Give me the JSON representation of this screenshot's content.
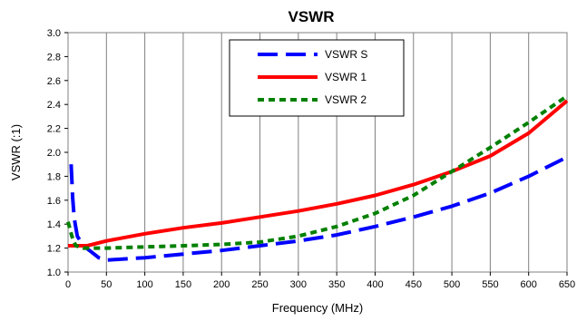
{
  "chart_data": {
    "type": "line",
    "title": "VSWR",
    "xlabel": "Frequency (MHz)",
    "ylabel": "VSWR (:1)",
    "xlim": [
      0,
      650
    ],
    "ylim": [
      1.0,
      3.0
    ],
    "x_ticks": [
      "0",
      "50",
      "100",
      "150",
      "200",
      "250",
      "300",
      "350",
      "400",
      "450",
      "500",
      "550",
      "600",
      "650"
    ],
    "y_ticks": [
      "1.0",
      "1.2",
      "1.4",
      "1.6",
      "1.8",
      "2.0",
      "2.2",
      "2.4",
      "2.6",
      "2.8",
      "3.0"
    ],
    "grid": "vertical",
    "legend_position": "top-center",
    "series": [
      {
        "name": "VSWR S",
        "color": "#0000ff",
        "style": "long-dash",
        "points": [
          [
            4,
            1.9
          ],
          [
            6,
            1.62
          ],
          [
            8,
            1.45
          ],
          [
            12,
            1.3
          ],
          [
            20,
            1.22
          ],
          [
            30,
            1.17
          ],
          [
            40,
            1.12
          ],
          [
            50,
            1.1
          ],
          [
            75,
            1.11
          ],
          [
            100,
            1.12
          ],
          [
            150,
            1.15
          ],
          [
            200,
            1.18
          ],
          [
            250,
            1.22
          ],
          [
            300,
            1.26
          ],
          [
            350,
            1.31
          ],
          [
            400,
            1.38
          ],
          [
            450,
            1.46
          ],
          [
            500,
            1.55
          ],
          [
            550,
            1.66
          ],
          [
            600,
            1.8
          ],
          [
            650,
            1.96
          ]
        ]
      },
      {
        "name": "VSWR 1",
        "color": "#ff0000",
        "style": "solid",
        "points": [
          [
            0,
            1.22
          ],
          [
            10,
            1.22
          ],
          [
            25,
            1.22
          ],
          [
            50,
            1.26
          ],
          [
            100,
            1.32
          ],
          [
            150,
            1.37
          ],
          [
            200,
            1.41
          ],
          [
            250,
            1.46
          ],
          [
            300,
            1.51
          ],
          [
            350,
            1.57
          ],
          [
            400,
            1.64
          ],
          [
            450,
            1.73
          ],
          [
            500,
            1.84
          ],
          [
            550,
            1.97
          ],
          [
            600,
            2.16
          ],
          [
            650,
            2.43
          ]
        ]
      },
      {
        "name": "VSWR 2",
        "color": "#008000",
        "style": "short-dash",
        "points": [
          [
            0,
            1.42
          ],
          [
            5,
            1.3
          ],
          [
            10,
            1.22
          ],
          [
            20,
            1.2
          ],
          [
            50,
            1.2
          ],
          [
            100,
            1.21
          ],
          [
            150,
            1.22
          ],
          [
            200,
            1.23
          ],
          [
            250,
            1.25
          ],
          [
            300,
            1.3
          ],
          [
            350,
            1.38
          ],
          [
            400,
            1.49
          ],
          [
            450,
            1.64
          ],
          [
            500,
            1.84
          ],
          [
            550,
            2.04
          ],
          [
            600,
            2.25
          ],
          [
            650,
            2.47
          ]
        ]
      }
    ]
  }
}
